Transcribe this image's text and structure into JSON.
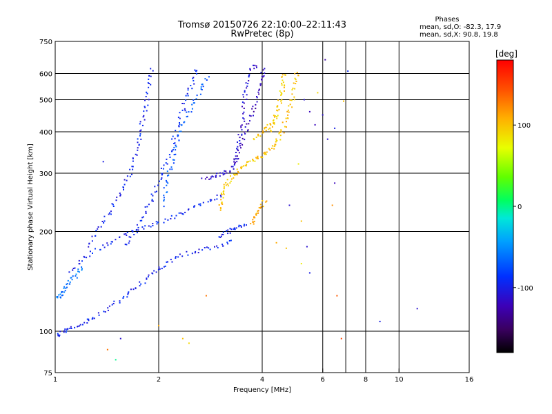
{
  "chart_data": {
    "type": "scatter",
    "title": "Tromsø 20150726 22:10:00–22:11:43",
    "subtitle": "RwPretec (8p)",
    "xlabel": "Frequency [MHz]",
    "ylabel": "Stationary phase Virtual Height [km]",
    "x_scale": "log",
    "y_scale": "log",
    "xlim": [
      1,
      16
    ],
    "ylim": [
      75,
      750
    ],
    "x_ticks": [
      1,
      2,
      4,
      6,
      8,
      10,
      16
    ],
    "x_tick_labels": [
      "1",
      "2",
      "4",
      "6",
      "8",
      "10",
      "16"
    ],
    "x_gridlines": [
      2,
      4,
      6,
      7,
      8,
      10
    ],
    "y_ticks": [
      75,
      100,
      200,
      300,
      400,
      500,
      600,
      750
    ],
    "y_tick_labels": [
      "75",
      "100",
      "200",
      "300",
      "400",
      "500",
      "600",
      "750"
    ],
    "y_gridlines": [
      100,
      200,
      300,
      400,
      500,
      600
    ],
    "grid": true,
    "info": {
      "heading": "Phases",
      "line_o": "mean, sd,O:  -82.3, 17.9",
      "line_x": "mean, sd,X:  90.8, 19.8"
    },
    "colorbar": {
      "label": "[deg]",
      "range": [
        -180,
        180
      ],
      "ticks": [
        -100,
        0,
        100
      ],
      "tick_labels": [
        "-100",
        "0",
        "100"
      ]
    },
    "traces": [
      {
        "phase": -95,
        "points": [
          [
            1.0,
            96
          ],
          [
            1.05,
            99
          ],
          [
            1.1,
            102
          ],
          [
            1.2,
            106
          ],
          [
            1.3,
            110
          ],
          [
            1.45,
            118
          ],
          [
            1.6,
            128
          ],
          [
            1.75,
            138
          ],
          [
            1.9,
            148
          ],
          [
            2.05,
            158
          ],
          [
            2.3,
            168
          ],
          [
            2.6,
            175
          ],
          [
            3.0,
            181
          ],
          [
            3.3,
            187
          ]
        ]
      },
      {
        "phase": -60,
        "points": [
          [
            1.0,
            124
          ],
          [
            1.03,
            128
          ],
          [
            1.06,
            133
          ],
          [
            1.1,
            140
          ],
          [
            1.15,
            148
          ],
          [
            1.2,
            156
          ]
        ]
      },
      {
        "phase": -95,
        "points": [
          [
            1.1,
            150
          ],
          [
            1.2,
            165
          ],
          [
            1.35,
            178
          ],
          [
            1.5,
            190
          ],
          [
            1.7,
            200
          ],
          [
            1.9,
            210
          ],
          [
            2.2,
            222
          ],
          [
            2.5,
            234
          ],
          [
            2.8,
            248
          ],
          [
            3.1,
            260
          ]
        ]
      },
      {
        "phase": -95,
        "points": [
          [
            1.25,
            180
          ],
          [
            1.35,
            205
          ],
          [
            1.45,
            230
          ],
          [
            1.55,
            262
          ],
          [
            1.65,
            300
          ],
          [
            1.72,
            350
          ],
          [
            1.78,
            410
          ],
          [
            1.83,
            480
          ],
          [
            1.88,
            560
          ],
          [
            1.92,
            620
          ]
        ]
      },
      {
        "phase": -92,
        "points": [
          [
            1.6,
            180
          ],
          [
            1.75,
            210
          ],
          [
            1.9,
            245
          ],
          [
            2.0,
            280
          ],
          [
            2.1,
            320
          ],
          [
            2.2,
            370
          ],
          [
            2.3,
            430
          ],
          [
            2.4,
            500
          ],
          [
            2.5,
            560
          ],
          [
            2.6,
            630
          ]
        ]
      },
      {
        "phase": -70,
        "points": [
          [
            2.05,
            240
          ],
          [
            2.15,
            300
          ],
          [
            2.25,
            360
          ],
          [
            2.35,
            420
          ],
          [
            2.5,
            480
          ],
          [
            2.65,
            540
          ],
          [
            2.8,
            590
          ]
        ]
      },
      {
        "phase": -110,
        "points": [
          [
            2.7,
            290
          ],
          [
            2.9,
            295
          ],
          [
            3.1,
            300
          ],
          [
            3.3,
            310
          ],
          [
            3.4,
            340
          ],
          [
            3.45,
            380
          ],
          [
            3.5,
            430
          ],
          [
            3.55,
            490
          ],
          [
            3.6,
            550
          ],
          [
            3.7,
            620
          ],
          [
            3.85,
            640
          ]
        ]
      },
      {
        "phase": -120,
        "points": [
          [
            3.3,
            320
          ],
          [
            3.45,
            360
          ],
          [
            3.6,
            410
          ],
          [
            3.75,
            460
          ],
          [
            3.9,
            520
          ],
          [
            4.0,
            580
          ],
          [
            4.05,
            620
          ]
        ]
      },
      {
        "phase": -95,
        "points": [
          [
            3.0,
            190
          ],
          [
            3.2,
            200
          ],
          [
            3.4,
            205
          ],
          [
            3.6,
            210
          ]
        ]
      },
      {
        "phase": 100,
        "points": [
          [
            3.0,
            230
          ],
          [
            3.05,
            250
          ],
          [
            3.1,
            270
          ],
          [
            3.2,
            285
          ],
          [
            3.35,
            300
          ],
          [
            3.5,
            315
          ],
          [
            3.7,
            325
          ],
          [
            3.9,
            335
          ],
          [
            4.1,
            345
          ],
          [
            4.3,
            360
          ],
          [
            4.45,
            380
          ],
          [
            4.6,
            410
          ],
          [
            4.75,
            450
          ],
          [
            4.9,
            500
          ],
          [
            5.0,
            560
          ],
          [
            5.05,
            620
          ]
        ]
      },
      {
        "phase": 110,
        "points": [
          [
            3.7,
            210
          ],
          [
            3.8,
            222
          ],
          [
            3.95,
            235
          ],
          [
            4.1,
            248
          ]
        ]
      },
      {
        "phase": 95,
        "points": [
          [
            4.2,
            400
          ],
          [
            4.35,
            440
          ],
          [
            4.45,
            480
          ],
          [
            4.55,
            520
          ],
          [
            4.6,
            560
          ],
          [
            4.65,
            610
          ]
        ]
      },
      {
        "phase": 100,
        "points": [
          [
            3.8,
            380
          ],
          [
            4.0,
            400
          ],
          [
            4.2,
            420
          ],
          [
            4.4,
            440
          ]
        ]
      }
    ],
    "scatter_points": [
      [
        1.38,
        325,
        -100
      ],
      [
        1.42,
        88,
        130
      ],
      [
        1.5,
        82,
        0
      ],
      [
        1.55,
        95,
        -110
      ],
      [
        2.0,
        104,
        110
      ],
      [
        2.35,
        95,
        100
      ],
      [
        2.45,
        92,
        90
      ],
      [
        2.75,
        128,
        130
      ],
      [
        6.1,
        660,
        -130
      ],
      [
        6.4,
        240,
        120
      ],
      [
        6.5,
        280,
        -120
      ],
      [
        6.6,
        128,
        140
      ],
      [
        6.8,
        95,
        150
      ],
      [
        7.1,
        610,
        -90
      ],
      [
        6.9,
        495,
        100
      ],
      [
        8.8,
        107,
        -100
      ],
      [
        11.3,
        117,
        -110
      ],
      [
        5.5,
        150,
        -100
      ],
      [
        5.2,
        160,
        80
      ],
      [
        5.8,
        525,
        90
      ],
      [
        6.0,
        450,
        -110
      ],
      [
        5.5,
        460,
        -120
      ],
      [
        5.7,
        420,
        -120
      ],
      [
        6.2,
        380,
        -110
      ],
      [
        6.5,
        410,
        -100
      ],
      [
        5.3,
        500,
        -110
      ],
      [
        5.4,
        180,
        -110
      ],
      [
        5.1,
        320,
        80
      ],
      [
        4.8,
        240,
        -110
      ],
      [
        5.2,
        215,
        100
      ],
      [
        4.4,
        185,
        110
      ],
      [
        4.7,
        178,
        100
      ]
    ]
  }
}
